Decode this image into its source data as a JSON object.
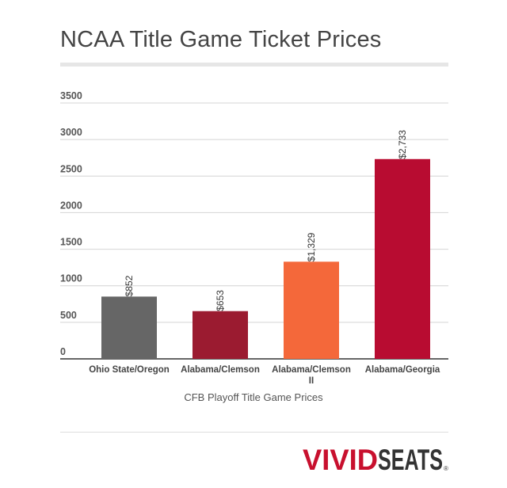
{
  "chart_data": {
    "type": "bar",
    "title": "NCAA Title Game Ticket Prices",
    "xlabel": "CFB Playoff Title Game Prices",
    "ylabel": "",
    "categories": [
      "Ohio State/Oregon",
      "Alabama/Clemson",
      "Alabama/Clemson II",
      "Alabama/Georgia"
    ],
    "category_label_lines": [
      [
        "Ohio State/Oregon"
      ],
      [
        "Alabama/Clemson"
      ],
      [
        "Alabama/Clemson",
        "II"
      ],
      [
        "Alabama/Georgia"
      ]
    ],
    "values": [
      852,
      653,
      1329,
      2733
    ],
    "data_labels": [
      "$852",
      "$653",
      "$1,329",
      "$2,733"
    ],
    "bar_colors": [
      "#666666",
      "#9b1b30",
      "#f4683a",
      "#b80c31"
    ],
    "ylim": [
      0,
      3500
    ],
    "yticks": [
      0,
      500,
      1000,
      1500,
      2000,
      2500,
      3000,
      3500
    ],
    "ytick_labels": [
      "0",
      "500",
      "1000",
      "1500",
      "2000",
      "2500",
      "3000",
      "3500"
    ],
    "grid": true,
    "legend": "none"
  },
  "brand": {
    "logo_text_1": "VIVID",
    "logo_text_2": "SEATS",
    "logo_mark": "®",
    "colors": {
      "vivid": "#c8102e",
      "seats": "#333333"
    }
  }
}
